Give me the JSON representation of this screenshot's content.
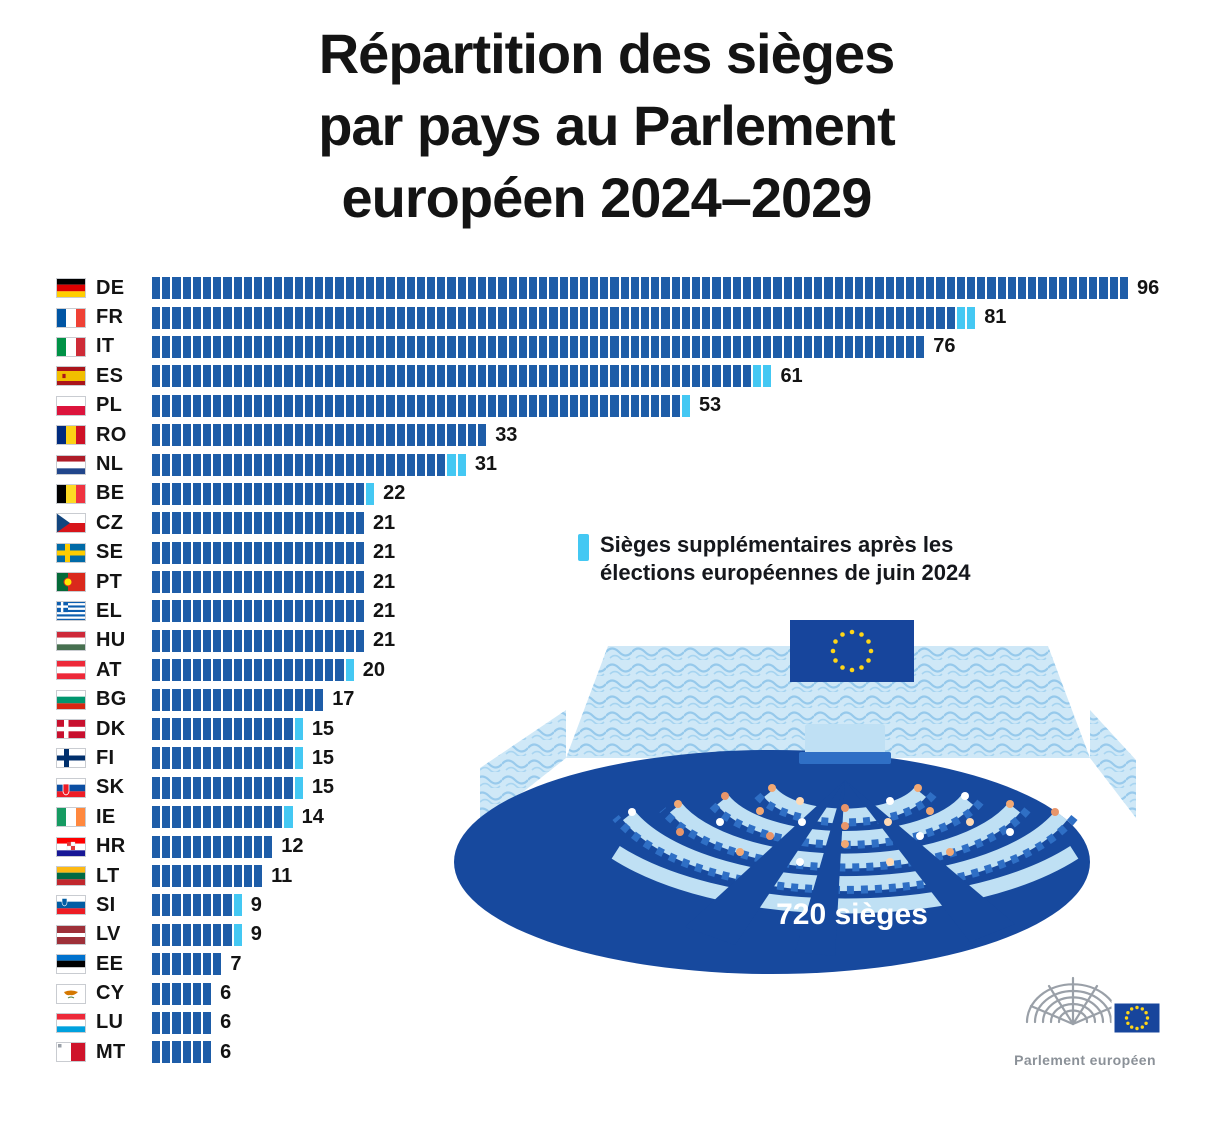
{
  "title": {
    "lines": [
      "Répartition des sièges",
      "par pays au Parlement",
      "européen 2024–2029"
    ]
  },
  "legend": {
    "marker_icon": "extra-seats-marker",
    "lines": [
      "Sièges supplémentaires après les",
      "élections européennes de juin 2024"
    ]
  },
  "illustration": {
    "name": "hemicycle-illustration",
    "total_label": "720 sièges",
    "flag_icon": "eu-flag-icon"
  },
  "logo": {
    "icon": "european-parliament-logo",
    "label": "Parlement européen"
  },
  "chart_data": {
    "type": "bar",
    "orientation": "horizontal",
    "title": "Répartition des sièges par pays au Parlement européen 2024–2029",
    "unit": "1 segment = 1 siège",
    "total_seats": 720,
    "legend_extra": "Sièges supplémentaires après les élections européennes de juin 2024",
    "colors": {
      "seats": "#1e5da8",
      "extra": "#44c8f3"
    },
    "categories": [
      "DE",
      "FR",
      "IT",
      "ES",
      "PL",
      "RO",
      "NL",
      "BE",
      "CZ",
      "SE",
      "PT",
      "EL",
      "HU",
      "AT",
      "BG",
      "DK",
      "FI",
      "SK",
      "IE",
      "HR",
      "LT",
      "SI",
      "LV",
      "EE",
      "CY",
      "LU",
      "MT"
    ],
    "series": [
      {
        "name": "Sièges au Parlement européen 2024–2029 (total affiché)",
        "values": [
          96,
          81,
          76,
          61,
          53,
          33,
          31,
          22,
          21,
          21,
          21,
          21,
          21,
          20,
          17,
          15,
          15,
          15,
          14,
          12,
          11,
          9,
          9,
          7,
          6,
          6,
          6
        ]
      },
      {
        "name": "dont sièges supplémentaires après les élections de juin 2024",
        "values": [
          0,
          2,
          0,
          2,
          1,
          0,
          2,
          1,
          0,
          0,
          0,
          0,
          0,
          1,
          0,
          1,
          1,
          1,
          1,
          0,
          0,
          1,
          1,
          0,
          0,
          0,
          0
        ]
      }
    ]
  }
}
